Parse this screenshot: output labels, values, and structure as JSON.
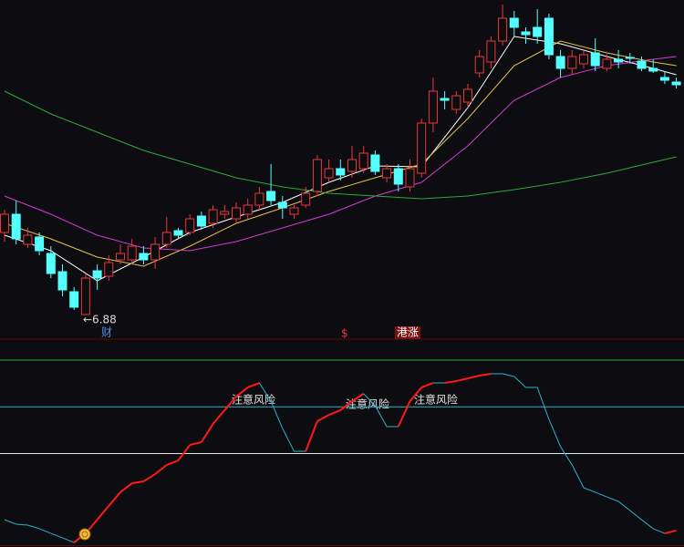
{
  "chart_data": [
    {
      "type": "candlestick",
      "open": [
        7.78,
        7.98,
        7.65,
        7.73,
        7.55,
        7.35,
        7.13,
        6.88,
        7.36,
        7.3,
        7.48,
        7.48,
        7.55,
        7.48,
        7.65,
        7.8,
        7.78,
        7.96,
        7.88,
        7.98,
        7.93,
        7.98,
        8.08,
        8.23,
        8.11,
        7.98,
        8.08,
        8.23,
        8.38,
        8.48,
        8.45,
        8.48,
        8.63,
        8.38,
        8.48,
        8.28,
        8.43,
        8.98,
        9.25,
        9.13,
        9.21,
        9.53,
        9.65,
        9.88,
        10.13,
        9.98,
        10.03,
        10.13,
        9.71,
        9.58,
        9.63,
        9.75,
        9.58,
        9.68,
        9.7,
        9.66,
        9.58,
        9.48,
        9.43
      ],
      "high": [
        8.03,
        8.13,
        7.83,
        7.78,
        7.63,
        7.43,
        7.18,
        7.33,
        7.43,
        7.53,
        7.65,
        7.71,
        7.63,
        7.73,
        7.95,
        7.83,
        7.98,
        8.01,
        8.08,
        8.08,
        8.11,
        8.15,
        8.28,
        8.53,
        8.18,
        8.08,
        8.28,
        8.63,
        8.58,
        8.58,
        8.73,
        8.73,
        8.68,
        8.53,
        8.53,
        8.58,
        9.03,
        9.48,
        9.33,
        9.33,
        9.41,
        9.78,
        9.93,
        10.28,
        10.21,
        10.03,
        10.23,
        10.18,
        9.78,
        9.78,
        9.78,
        9.91,
        9.73,
        9.78,
        9.75,
        9.71,
        9.68,
        9.55,
        9.48
      ],
      "low": [
        7.68,
        7.65,
        7.61,
        7.53,
        7.28,
        7.08,
        6.93,
        6.88,
        7.15,
        7.25,
        7.43,
        7.43,
        7.43,
        7.38,
        7.61,
        7.71,
        7.75,
        7.81,
        7.83,
        7.93,
        7.88,
        7.93,
        8.03,
        8.08,
        7.93,
        7.93,
        8.05,
        8.18,
        8.33,
        8.35,
        8.38,
        8.43,
        8.41,
        8.33,
        8.23,
        8.23,
        8.38,
        8.88,
        9.13,
        9.08,
        9.15,
        9.48,
        9.58,
        9.83,
        9.93,
        9.85,
        9.85,
        9.68,
        9.48,
        9.51,
        9.58,
        9.55,
        9.55,
        9.58,
        9.63,
        9.55,
        9.53,
        9.41,
        9.36
      ],
      "close": [
        7.98,
        7.71,
        7.75,
        7.58,
        7.33,
        7.15,
        6.96,
        7.28,
        7.28,
        7.45,
        7.55,
        7.63,
        7.48,
        7.65,
        7.78,
        7.75,
        7.93,
        7.85,
        8.03,
        8.01,
        8.05,
        8.08,
        8.21,
        8.13,
        8.05,
        8.05,
        8.21,
        8.58,
        8.48,
        8.41,
        8.58,
        8.65,
        8.45,
        8.48,
        8.31,
        8.48,
        8.98,
        9.33,
        9.23,
        9.28,
        9.35,
        9.71,
        9.88,
        10.13,
        10.03,
        9.95,
        9.93,
        9.73,
        9.58,
        9.71,
        9.73,
        9.61,
        9.68,
        9.65,
        9.69,
        9.58,
        9.55,
        9.45,
        9.4
      ],
      "up_color": "#e8383d",
      "down_color": "#54ffff",
      "ylim": [
        6.63,
        10.33
      ],
      "lines": [
        {
          "color": "#ffffff",
          "x": [
            0,
            4,
            8,
            12,
            16,
            20,
            24,
            28,
            32,
            36,
            40,
            44,
            48,
            52,
            56,
            58
          ],
          "values": [
            7.75,
            7.58,
            7.25,
            7.51,
            7.78,
            7.95,
            8.11,
            8.33,
            8.51,
            8.5,
            9.15,
            9.93,
            9.85,
            9.71,
            9.58,
            9.51
          ]
        },
        {
          "color": "#e6c34a",
          "x": [
            0,
            4,
            8,
            12,
            16,
            20,
            24,
            28,
            32,
            36,
            40,
            44,
            48,
            52,
            56,
            58
          ],
          "values": [
            7.88,
            7.71,
            7.51,
            7.41,
            7.63,
            7.88,
            8.05,
            8.23,
            8.38,
            8.53,
            9.03,
            9.61,
            9.88,
            9.75,
            9.65,
            9.61
          ]
        },
        {
          "color": "#d23cd2",
          "x": [
            0,
            4,
            8,
            12,
            16,
            20,
            24,
            28,
            32,
            36,
            40,
            44,
            48,
            52,
            56,
            58
          ],
          "values": [
            8.18,
            7.98,
            7.75,
            7.61,
            7.58,
            7.68,
            7.83,
            7.98,
            8.18,
            8.33,
            8.73,
            9.23,
            9.48,
            9.61,
            9.68,
            9.71
          ]
        },
        {
          "color": "#2fa83a",
          "x": [
            0,
            4,
            8,
            12,
            16,
            20,
            24,
            28,
            32,
            36,
            40,
            44,
            48,
            52,
            56,
            58
          ],
          "values": [
            9.33,
            9.08,
            8.88,
            8.68,
            8.53,
            8.38,
            8.28,
            8.21,
            8.18,
            8.15,
            8.18,
            8.25,
            8.33,
            8.43,
            8.55,
            8.61
          ]
        }
      ],
      "low_label": "←6.88",
      "markers": [
        "财",
        "$",
        "港涨"
      ]
    },
    {
      "type": "line",
      "values": [
        14.6,
        12.2,
        11.7,
        9.8,
        7.3,
        4.9,
        2.4,
        7.3,
        14.6,
        22.0,
        29.3,
        34.1,
        35.1,
        39.0,
        43.9,
        46.3,
        54.6,
        56.1,
        65.9,
        73.2,
        80.5,
        85.4,
        87.8,
        78.0,
        63.4,
        51.2,
        51.2,
        67.3,
        70.7,
        73.2,
        78.0,
        82.0,
        75.6,
        64.4,
        64.4,
        78.0,
        85.4,
        87.8,
        87.8,
        88.8,
        90.2,
        91.7,
        92.7,
        92.7,
        91.2,
        85.4,
        85.4,
        68.3,
        53.7,
        43.9,
        31.7,
        29.3,
        26.8,
        24.4,
        19.5,
        14.6,
        9.8,
        7.3,
        8.8
      ],
      "up_color": "#ff1a1a",
      "down_color": "#2ab5c8",
      "ylim": [
        0,
        100
      ],
      "levels": [
        {
          "value": 100,
          "color": "#2fa83a"
        },
        {
          "value": 75,
          "color": "#2ab5c8"
        },
        {
          "value": 50,
          "color": "#e8e8e8"
        }
      ],
      "annotations": [
        "注意风险",
        "注意风险",
        "注意风险"
      ]
    }
  ]
}
